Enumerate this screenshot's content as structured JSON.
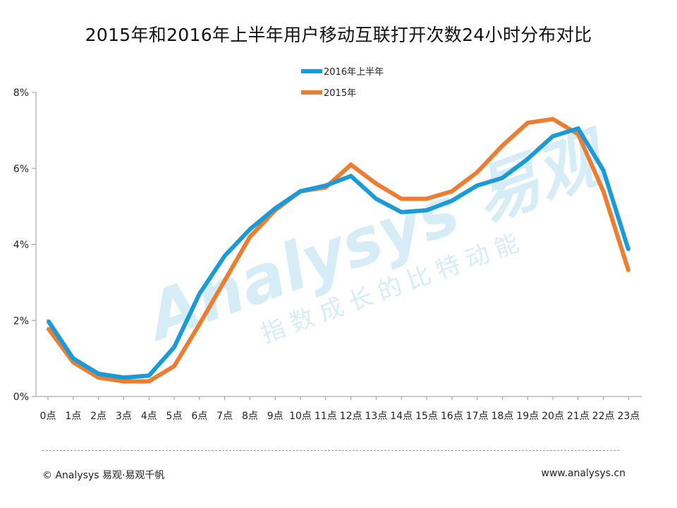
{
  "chart_data": {
    "type": "line",
    "title": "2015年和2016年上半年用户移动互联打开次数24小时分布对比",
    "xlabel": "",
    "ylabel": "",
    "categories": [
      "0点",
      "1点",
      "2点",
      "3点",
      "4点",
      "5点",
      "6点",
      "7点",
      "8点",
      "9点",
      "10点",
      "11点",
      "12点",
      "13点",
      "14点",
      "15点",
      "16点",
      "17点",
      "18点",
      "19点",
      "20点",
      "21点",
      "22点",
      "23点"
    ],
    "ylim": [
      0,
      8
    ],
    "yticks": [
      "0%",
      "2%",
      "4%",
      "6%",
      "8%"
    ],
    "grid": false,
    "legend_position": "top-center",
    "series": [
      {
        "name": "2016年上半年",
        "color": "#1a9ad9",
        "values": [
          2.0,
          1.0,
          0.6,
          0.5,
          0.55,
          1.3,
          2.7,
          3.7,
          4.4,
          4.95,
          5.4,
          5.55,
          5.8,
          5.2,
          4.85,
          4.9,
          5.15,
          5.55,
          5.75,
          6.25,
          6.85,
          7.05,
          5.95,
          3.85
        ]
      },
      {
        "name": "2015年",
        "color": "#ed7d31",
        "values": [
          1.8,
          0.9,
          0.5,
          0.4,
          0.4,
          0.8,
          1.9,
          3.05,
          4.2,
          4.9,
          5.4,
          5.5,
          6.1,
          5.6,
          5.2,
          5.2,
          5.4,
          5.9,
          6.6,
          7.2,
          7.3,
          6.9,
          5.4,
          3.3
        ]
      }
    ]
  },
  "watermark": {
    "logo_text": "Analysys 易观",
    "slogan": "指数成长的比特动能"
  },
  "footer": {
    "left": "© Analysys 易观·易观千帆",
    "right": "www.analysys.cn"
  }
}
